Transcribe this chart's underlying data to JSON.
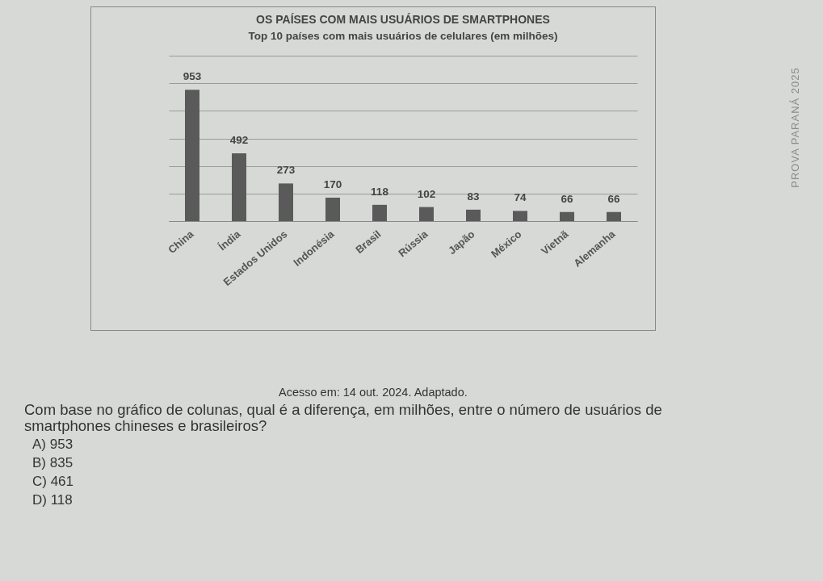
{
  "chart_data": {
    "type": "bar",
    "title": "OS PAÍSES COM MAIS USUÁRIOS DE SMARTPHONES",
    "subtitle": "Top 10 países com mais usuários de celulares (em milhões)",
    "categories": [
      "China",
      "Índia",
      "Estados Unidos",
      "Indonésia",
      "Brasil",
      "Rússia",
      "Japão",
      "México",
      "Vietnã",
      "Alemanha"
    ],
    "values": [
      953,
      492,
      273,
      170,
      118,
      102,
      83,
      74,
      66,
      66
    ],
    "color": "#5a5a5a",
    "data_labels": true,
    "ylim": [
      0,
      1200
    ],
    "yticks": [
      {
        "value": 0,
        "label": null
      },
      {
        "value": 200,
        "label": null
      },
      {
        "value": 400,
        "label": null
      },
      {
        "value": 600,
        "label": null
      },
      {
        "value": 800,
        "label": null
      },
      {
        "value": 1000,
        "label": null
      },
      {
        "value": 1200,
        "label": null
      }
    ],
    "grid": "y",
    "tick_labels": "x",
    "annotations": [
      "Acesso em: 14 out. 2024. Adaptado.",
      "Com base no gráfico de colunas, qual é a diferença, em milhões, entre o número de usuários de smartphones chineses e brasileiros?",
      "A) 953",
      "B) 835",
      "C) 461",
      "D) 118",
      "PROVA PARANÁ 2025"
    ]
  }
}
